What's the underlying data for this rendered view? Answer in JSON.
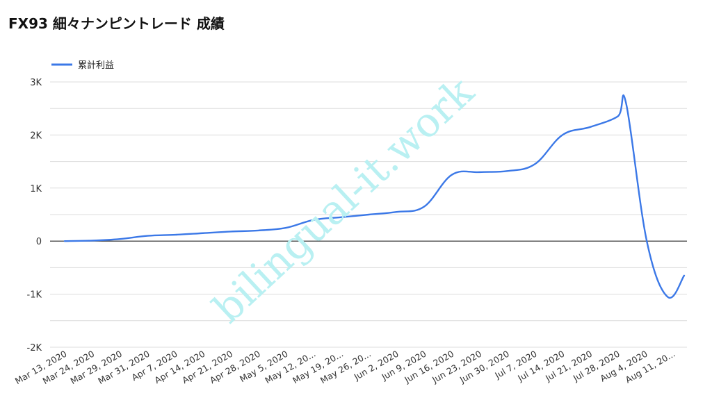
{
  "title": "FX93 細々ナンピントレード 成績",
  "watermark": "bilingual-it.work",
  "chart_data": {
    "type": "line",
    "title": "FX93 細々ナンピントレード 成績",
    "xlabel": "",
    "ylabel": "",
    "legend_position": "top-left",
    "grid": true,
    "ylim": [
      -2000,
      3000
    ],
    "yticks": [
      -2000,
      -1000,
      0,
      1000,
      2000,
      3000
    ],
    "ytick_labels": [
      "-2K",
      "-1K",
      "0",
      "1K",
      "2K",
      "3K"
    ],
    "xtick_labels": [
      "Mar 13, 2020",
      "Mar 24, 2020",
      "Mar 29, 2020",
      "Mar 31, 2020",
      "Apr 7, 2020",
      "Apr 14, 2020",
      "Apr 21, 2020",
      "Apr 28, 2020",
      "May 5, 2020",
      "May 12, 20...",
      "May 19, 20...",
      "May 26, 20...",
      "Jun 2, 2020",
      "Jun 9, 2020",
      "Jun 16, 2020",
      "Jun 23, 2020",
      "Jun 30, 2020",
      "Jul 7, 2020",
      "Jul 14, 2020",
      "Jul 21, 2020",
      "Jul 28, 2020",
      "Aug 4, 2020",
      "Aug 11, 20..."
    ],
    "series": [
      {
        "name": "累計利益",
        "color": "#3b78e7",
        "values": [
          0,
          10,
          40,
          100,
          120,
          150,
          180,
          200,
          250,
          400,
          450,
          500,
          550,
          650,
          1250,
          1300,
          1320,
          1450,
          2000,
          2150,
          2350,
          2600,
          0,
          -1050,
          -650
        ],
        "x_index": [
          0,
          1,
          2,
          3,
          4,
          5,
          6,
          7,
          8,
          9,
          10,
          11,
          12,
          13,
          14,
          15,
          16,
          17,
          18,
          19,
          20,
          20.3,
          21.05,
          21.8,
          22.4
        ]
      }
    ]
  }
}
